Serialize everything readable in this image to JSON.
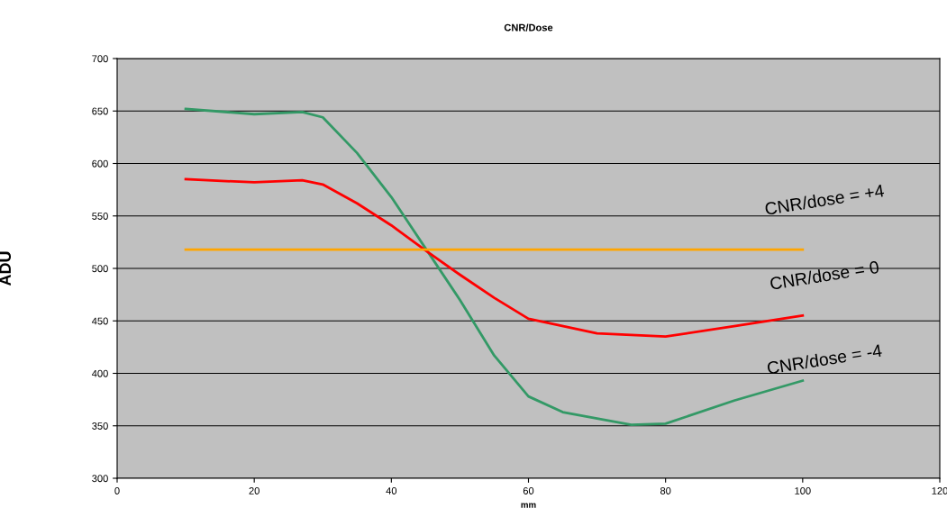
{
  "chart_data": {
    "type": "line",
    "title": "CNR/Dose",
    "xlabel": "mm",
    "ylabel": "ADU",
    "series": [
      {
        "color": "#339966",
        "x": [
          10,
          20,
          27,
          30,
          35,
          40,
          45,
          50,
          55,
          60,
          65,
          70,
          75,
          80,
          90,
          100
        ],
        "values": [
          652,
          647,
          649,
          644,
          610,
          568,
          519,
          470,
          417,
          378,
          363,
          357,
          351,
          352,
          374,
          393
        ]
      },
      {
        "color": "#ff0000",
        "x": [
          10,
          20,
          27,
          30,
          35,
          40,
          45,
          50,
          55,
          60,
          70,
          80,
          90,
          100
        ],
        "values": [
          585,
          582,
          584,
          580,
          562,
          541,
          517,
          494,
          472,
          452,
          438,
          435,
          445,
          455
        ]
      },
      {
        "color": "#ffa500",
        "x": [
          10,
          100
        ],
        "values": [
          518,
          518
        ]
      }
    ],
    "xlim": [
      0,
      120
    ],
    "xticks": [
      0,
      20,
      40,
      60,
      80,
      100,
      120
    ],
    "ylim": [
      300,
      700
    ],
    "yticks": [
      300,
      350,
      400,
      450,
      500,
      550,
      600,
      650,
      700
    ],
    "grid": "y",
    "legend": false,
    "marker": "none",
    "line_style": "solid",
    "annotations": [
      "CNR/dose = +4",
      "CNR/dose = 0",
      "CNR/dose = -4"
    ]
  }
}
